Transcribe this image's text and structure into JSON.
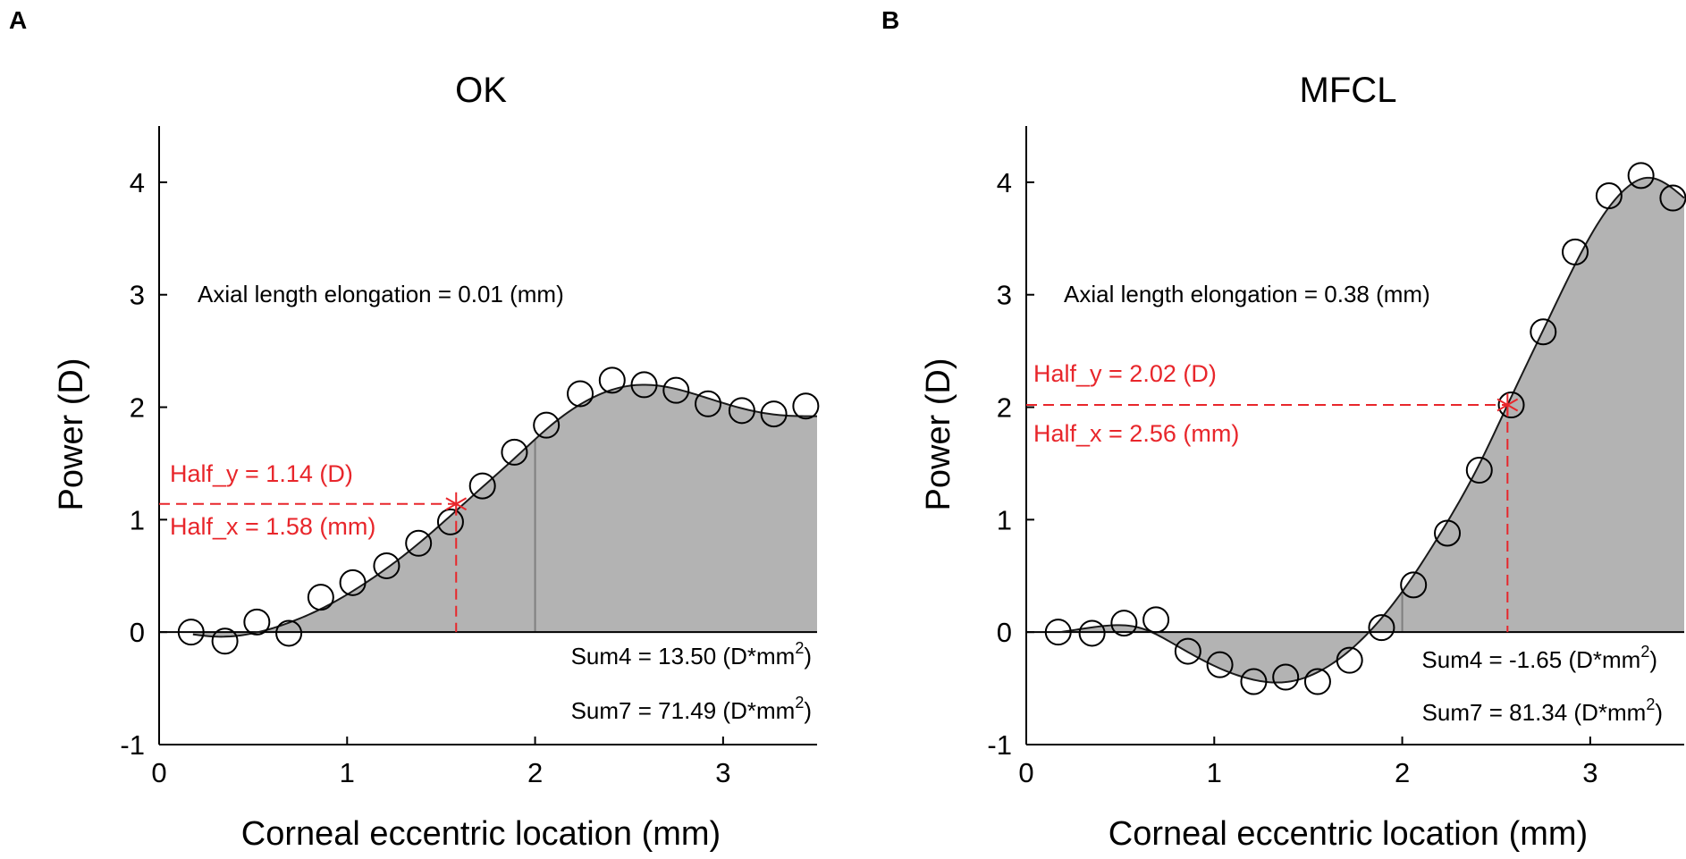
{
  "colors": {
    "fill": "#b3b3b3",
    "curve": "#1a1a1a",
    "marker": "#e8262b",
    "axis": "#000000",
    "marker_edge": "#000000"
  },
  "chart_data": [
    {
      "type": "scatter",
      "panel_letter": "A",
      "title": "OK",
      "xlabel": "Corneal eccentric location (mm)",
      "ylabel": "Power (D)",
      "xlim": [
        0,
        3.5
      ],
      "ylim": [
        -1,
        4.5
      ],
      "xticks": [
        0,
        1,
        2,
        3
      ],
      "yticks": [
        -1,
        0,
        1,
        2,
        3,
        4
      ],
      "ytick_labels": [
        "-1",
        "0",
        "1",
        "2",
        "3",
        "4"
      ],
      "xtick_labels": [
        "0",
        "1",
        "2",
        "3"
      ],
      "points_x": [
        0.17,
        0.35,
        0.52,
        0.69,
        0.86,
        1.03,
        1.21,
        1.38,
        1.55,
        1.72,
        1.89,
        2.06,
        2.24,
        2.41,
        2.58,
        2.75,
        2.92,
        3.1,
        3.27,
        3.44
      ],
      "points_y": [
        0.0,
        -0.08,
        0.09,
        -0.01,
        0.31,
        0.44,
        0.59,
        0.79,
        0.98,
        1.3,
        1.6,
        1.84,
        2.12,
        2.24,
        2.2,
        2.15,
        2.03,
        1.97,
        1.94,
        2.01
      ],
      "fit_curve": {
        "x": [
          0.18,
          0.3,
          0.5,
          0.7,
          0.9,
          1.1,
          1.3,
          1.5,
          1.7,
          1.9,
          2.1,
          2.3,
          2.5,
          2.7,
          2.9,
          3.1,
          3.3,
          3.5
        ],
        "y": [
          -0.02,
          -0.04,
          -0.01,
          0.09,
          0.24,
          0.44,
          0.68,
          0.96,
          1.26,
          1.56,
          1.86,
          2.08,
          2.19,
          2.18,
          2.09,
          1.99,
          1.93,
          1.92
        ]
      },
      "half_point": {
        "x": 1.58,
        "y": 1.14
      },
      "sum4_line_x": 2.0,
      "annotations": {
        "elongation": "Axial length elongation = 0.01 (mm)",
        "half_y": "Half_y = 1.14 (D)",
        "half_x": "Half_x = 1.58 (mm)",
        "sum4_prefix": "Sum4 = 13.50 (D*mm",
        "sum7_prefix": "Sum7 = 71.49 (D*mm",
        "sup": "2",
        "close": ")"
      }
    },
    {
      "type": "scatter",
      "panel_letter": "B",
      "title": "MFCL",
      "xlabel": "Corneal eccentric location (mm)",
      "ylabel": "Power (D)",
      "xlim": [
        0,
        3.5
      ],
      "ylim": [
        -1,
        4.5
      ],
      "xticks": [
        0,
        1,
        2,
        3
      ],
      "yticks": [
        -1,
        0,
        1,
        2,
        3,
        4
      ],
      "ytick_labels": [
        "-1",
        "0",
        "1",
        "2",
        "3",
        "4"
      ],
      "xtick_labels": [
        "0",
        "1",
        "2",
        "3"
      ],
      "points_x": [
        0.17,
        0.35,
        0.52,
        0.69,
        0.86,
        1.03,
        1.21,
        1.38,
        1.55,
        1.72,
        1.89,
        2.06,
        2.24,
        2.41,
        2.58,
        2.75,
        2.92,
        3.1,
        3.27,
        3.44
      ],
      "points_y": [
        0.0,
        -0.01,
        0.08,
        0.11,
        -0.17,
        -0.29,
        -0.44,
        -0.4,
        -0.44,
        -0.25,
        0.04,
        0.42,
        0.88,
        1.44,
        2.02,
        2.67,
        3.38,
        3.88,
        4.06,
        3.86
      ],
      "fit_curve": {
        "x": [
          0.18,
          0.3,
          0.45,
          0.6,
          0.8,
          1.0,
          1.2,
          1.4,
          1.6,
          1.8,
          2.0,
          2.2,
          2.4,
          2.56,
          2.8,
          3.0,
          3.2,
          3.3,
          3.4,
          3.5
        ],
        "y": [
          0.0,
          0.03,
          0.06,
          0.04,
          -0.12,
          -0.3,
          -0.42,
          -0.44,
          -0.31,
          -0.04,
          0.36,
          0.87,
          1.46,
          2.02,
          2.86,
          3.52,
          3.96,
          4.04,
          3.99,
          3.86
        ]
      },
      "half_point": {
        "x": 2.56,
        "y": 2.02
      },
      "sum4_line_x": 2.0,
      "annotations": {
        "elongation": "Axial length elongation = 0.38 (mm)",
        "half_y": "Half_y = 2.02 (D)",
        "half_x": "Half_x = 2.56 (mm)",
        "sum4_prefix": "Sum4 = -1.65 (D*mm",
        "sum7_prefix": "Sum7 = 81.34 (D*mm",
        "sup": "2",
        "close": ")"
      }
    }
  ]
}
